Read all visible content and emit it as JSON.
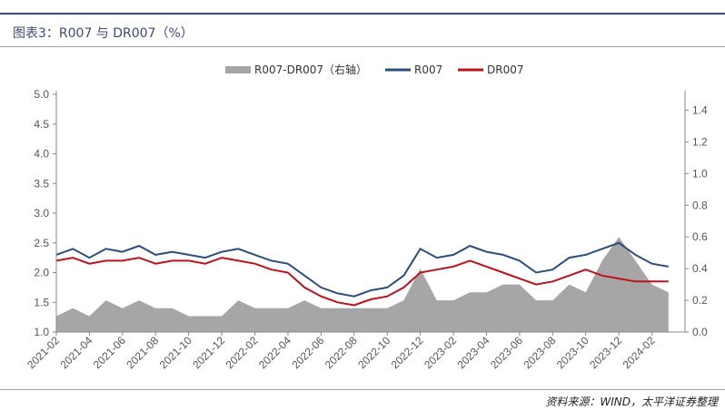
{
  "header": {
    "title": "图表3：R007 与 DR007（%）"
  },
  "footer": {
    "source": "资料来源：WIND，太平洋证券整理"
  },
  "colors": {
    "r007": "#2a4f7c",
    "dr007": "#c0101a",
    "spread": "#a6a6a6",
    "rule": "#3b4a7a"
  },
  "chart_data": {
    "type": "line",
    "legend": [
      "R007-DR007（右轴）",
      "R007",
      "DR007"
    ],
    "legend_position": "top-center",
    "grid": false,
    "y_left": {
      "min": 1.0,
      "max": 5.0,
      "ticks": [
        "1.0",
        "1.5",
        "2.0",
        "2.5",
        "3.0",
        "3.5",
        "4.0",
        "4.5",
        "5.0"
      ]
    },
    "y_right": {
      "min": 0.0,
      "max": 1.5,
      "ticks": [
        "0.0",
        "0.2",
        "0.4",
        "0.6",
        "0.8",
        "1.0",
        "1.2",
        "1.4"
      ]
    },
    "x_ticks": [
      "2021-02",
      "2021-04",
      "2021-06",
      "2021-08",
      "2021-10",
      "2021-12",
      "2022-02",
      "2022-04",
      "2022-06",
      "2022-08",
      "2022-10",
      "2022-12",
      "2023-02",
      "2023-04",
      "2023-06",
      "2023-08",
      "2023-10",
      "2023-12",
      "2024-02"
    ],
    "x_range": [
      "2021-02",
      "2024-04"
    ],
    "series": [
      {
        "name": "R007",
        "axis": "left",
        "x": [
          "2021-02",
          "2021-03",
          "2021-04",
          "2021-05",
          "2021-06",
          "2021-07",
          "2021-08",
          "2021-09",
          "2021-10",
          "2021-11",
          "2021-12",
          "2022-01",
          "2022-02",
          "2022-03",
          "2022-04",
          "2022-05",
          "2022-06",
          "2022-07",
          "2022-08",
          "2022-09",
          "2022-10",
          "2022-11",
          "2022-12",
          "2023-01",
          "2023-02",
          "2023-03",
          "2023-04",
          "2023-05",
          "2023-06",
          "2023-07",
          "2023-08",
          "2023-09",
          "2023-10",
          "2023-11",
          "2023-12",
          "2024-01",
          "2024-02",
          "2024-03"
        ],
        "values": [
          2.3,
          2.4,
          2.25,
          2.4,
          2.35,
          2.45,
          2.3,
          2.35,
          2.3,
          2.25,
          2.35,
          2.4,
          2.3,
          2.2,
          2.15,
          1.95,
          1.75,
          1.65,
          1.6,
          1.7,
          1.75,
          1.95,
          2.4,
          2.25,
          2.3,
          2.45,
          2.35,
          2.3,
          2.2,
          2.0,
          2.05,
          2.25,
          2.3,
          2.4,
          2.5,
          2.3,
          2.15,
          2.1
        ]
      },
      {
        "name": "DR007",
        "axis": "left",
        "x": [
          "2021-02",
          "2021-03",
          "2021-04",
          "2021-05",
          "2021-06",
          "2021-07",
          "2021-08",
          "2021-09",
          "2021-10",
          "2021-11",
          "2021-12",
          "2022-01",
          "2022-02",
          "2022-03",
          "2022-04",
          "2022-05",
          "2022-06",
          "2022-07",
          "2022-08",
          "2022-09",
          "2022-10",
          "2022-11",
          "2022-12",
          "2023-01",
          "2023-02",
          "2023-03",
          "2023-04",
          "2023-05",
          "2023-06",
          "2023-07",
          "2023-08",
          "2023-09",
          "2023-10",
          "2023-11",
          "2023-12",
          "2024-01",
          "2024-02",
          "2024-03"
        ],
        "values": [
          2.2,
          2.25,
          2.15,
          2.2,
          2.2,
          2.25,
          2.15,
          2.2,
          2.2,
          2.15,
          2.25,
          2.2,
          2.15,
          2.05,
          2.0,
          1.75,
          1.6,
          1.5,
          1.45,
          1.55,
          1.6,
          1.75,
          2.0,
          2.05,
          2.1,
          2.2,
          2.1,
          2.0,
          1.9,
          1.8,
          1.85,
          1.95,
          2.05,
          1.95,
          1.9,
          1.85,
          1.85,
          1.85
        ]
      },
      {
        "name": "R007-DR007（右轴）",
        "axis": "right",
        "x": [
          "2021-02",
          "2021-03",
          "2021-04",
          "2021-05",
          "2021-06",
          "2021-07",
          "2021-08",
          "2021-09",
          "2021-10",
          "2021-11",
          "2021-12",
          "2022-01",
          "2022-02",
          "2022-03",
          "2022-04",
          "2022-05",
          "2022-06",
          "2022-07",
          "2022-08",
          "2022-09",
          "2022-10",
          "2022-11",
          "2022-12",
          "2023-01",
          "2023-02",
          "2023-03",
          "2023-04",
          "2023-05",
          "2023-06",
          "2023-07",
          "2023-08",
          "2023-09",
          "2023-10",
          "2023-11",
          "2023-12",
          "2024-01",
          "2024-02",
          "2024-03"
        ],
        "values": [
          0.1,
          0.15,
          0.1,
          0.2,
          0.15,
          0.2,
          0.15,
          0.15,
          0.1,
          0.1,
          0.1,
          0.2,
          0.15,
          0.15,
          0.15,
          0.2,
          0.15,
          0.15,
          0.15,
          0.15,
          0.15,
          0.2,
          0.4,
          0.2,
          0.2,
          0.25,
          0.25,
          0.3,
          0.3,
          0.2,
          0.2,
          0.3,
          0.25,
          0.45,
          0.6,
          0.45,
          0.3,
          0.25
        ]
      }
    ]
  }
}
